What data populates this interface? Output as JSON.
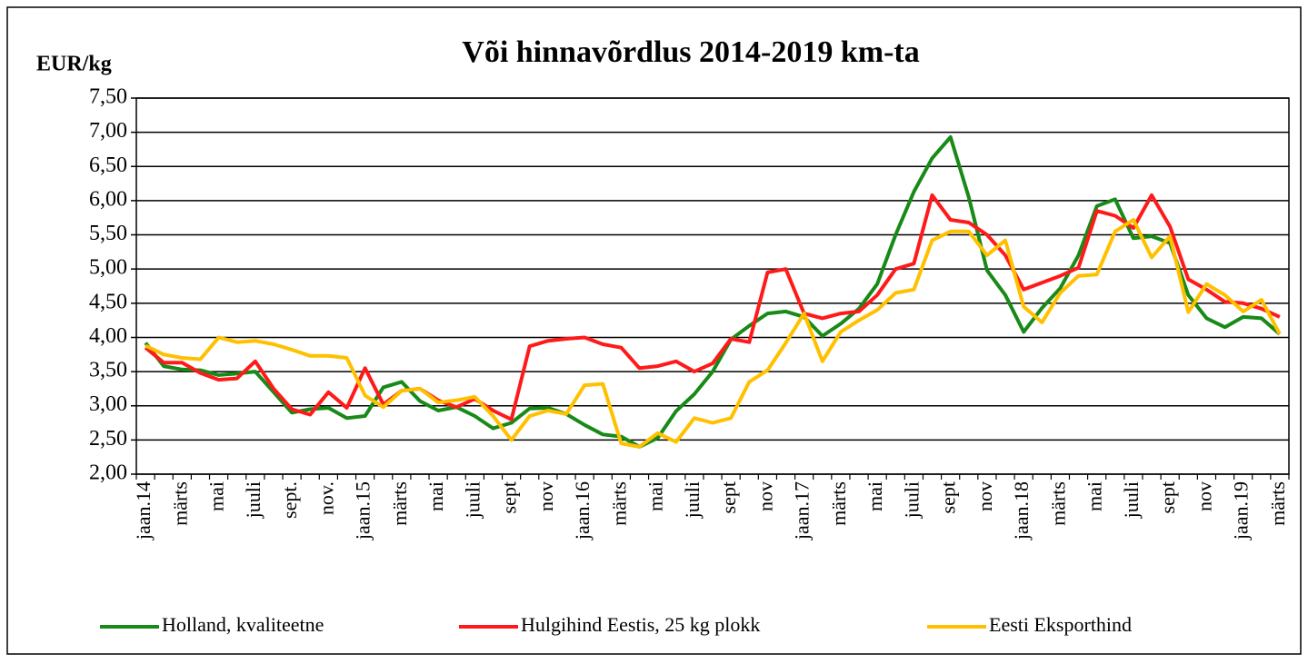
{
  "chart_data": {
    "type": "line",
    "title": "Või hinnavõrdlus  2014-2019 km-ta",
    "y_label": "EUR/kg",
    "categories": [
      "jaan.14",
      null,
      "märts",
      null,
      "mai",
      null,
      "juuli",
      null,
      "sept.",
      null,
      "nov.",
      null,
      "jaan.15",
      null,
      "märts",
      null,
      "mai",
      null,
      "juuli",
      null,
      "sept",
      null,
      "nov",
      null,
      "jaan.16",
      null,
      "märts",
      null,
      "mai",
      null,
      "juuli",
      null,
      "sept",
      null,
      "nov",
      null,
      "jaan.17",
      null,
      "märts",
      null,
      "mai",
      null,
      "juuli",
      null,
      "sept",
      null,
      "nov",
      null,
      "jaan.18",
      null,
      "märts",
      null,
      "mai",
      null,
      "juuli",
      null,
      "sept",
      null,
      "nov",
      null,
      "jaan.19",
      null,
      "märts"
    ],
    "series": [
      {
        "name": "Holland, kvaliteetne",
        "color": "#178a17",
        "values": [
          3.92,
          3.58,
          3.53,
          3.52,
          3.45,
          3.47,
          3.5,
          3.2,
          2.9,
          2.95,
          2.97,
          2.82,
          2.85,
          3.27,
          3.35,
          3.07,
          2.93,
          2.98,
          2.85,
          2.67,
          2.75,
          2.96,
          2.97,
          2.88,
          2.72,
          2.58,
          2.55,
          2.4,
          2.53,
          2.92,
          3.17,
          3.5,
          3.97,
          4.17,
          4.35,
          4.38,
          4.3,
          4.02,
          4.2,
          4.42,
          4.78,
          5.5,
          6.13,
          6.62,
          6.93,
          6.05,
          4.98,
          4.62,
          4.08,
          4.43,
          4.72,
          5.2,
          5.92,
          6.02,
          5.45,
          5.48,
          5.38,
          4.62,
          4.28,
          4.15,
          4.3,
          4.28,
          4.05
        ]
      },
      {
        "name": "Hulgihind Eestis, 25 kg plokk",
        "color": "#ff1a1a",
        "values": [
          3.85,
          3.63,
          3.63,
          3.48,
          3.38,
          3.4,
          3.65,
          3.25,
          2.95,
          2.87,
          3.2,
          2.97,
          3.55,
          3.02,
          3.22,
          3.25,
          3.08,
          2.98,
          3.1,
          2.93,
          2.8,
          3.87,
          3.95,
          3.98,
          4.0,
          3.9,
          3.85,
          3.55,
          3.58,
          3.65,
          3.5,
          3.62,
          3.98,
          3.93,
          4.95,
          5.0,
          4.35,
          4.28,
          4.35,
          4.38,
          4.62,
          5.0,
          5.08,
          6.08,
          5.72,
          5.68,
          5.5,
          5.2,
          4.7,
          4.8,
          4.9,
          5.02,
          5.85,
          5.78,
          5.6,
          6.08,
          5.62,
          4.85,
          4.7,
          4.52,
          4.5,
          4.42,
          4.3
        ]
      },
      {
        "name": "Eesti Eksporthind",
        "color": "#ffc000",
        "values": [
          3.88,
          3.75,
          3.7,
          3.68,
          4.0,
          3.93,
          3.95,
          3.9,
          3.82,
          3.73,
          3.73,
          3.7,
          3.15,
          2.98,
          3.22,
          3.25,
          3.05,
          3.08,
          3.13,
          2.85,
          2.5,
          2.85,
          2.93,
          2.88,
          3.3,
          3.32,
          2.45,
          2.4,
          2.6,
          2.47,
          2.82,
          2.75,
          2.82,
          3.35,
          3.52,
          3.92,
          4.35,
          3.65,
          4.08,
          4.25,
          4.4,
          4.65,
          4.7,
          5.42,
          5.55,
          5.55,
          5.2,
          5.42,
          4.45,
          4.22,
          4.65,
          4.9,
          4.92,
          5.55,
          5.72,
          5.17,
          5.48,
          4.37,
          4.78,
          4.62,
          4.38,
          4.55,
          4.05
        ]
      }
    ],
    "ylim": [
      2,
      7.5
    ],
    "yticks": [
      {
        "value": 2,
        "label": "2,00"
      },
      {
        "value": 2.5,
        "label": "2,50"
      },
      {
        "value": 3,
        "label": "3,00"
      },
      {
        "value": 3.5,
        "label": "3,50"
      },
      {
        "value": 4,
        "label": "4,00"
      },
      {
        "value": 4.5,
        "label": "4,50"
      },
      {
        "value": 5,
        "label": "5,00"
      },
      {
        "value": 5.5,
        "label": "5,50"
      },
      {
        "value": 6,
        "label": "6,00"
      },
      {
        "value": 6.5,
        "label": "6,50"
      },
      {
        "value": 7,
        "label": "7,00"
      },
      {
        "value": 7.5,
        "label": "7,50"
      }
    ],
    "grid": true,
    "legend": "bottom"
  }
}
